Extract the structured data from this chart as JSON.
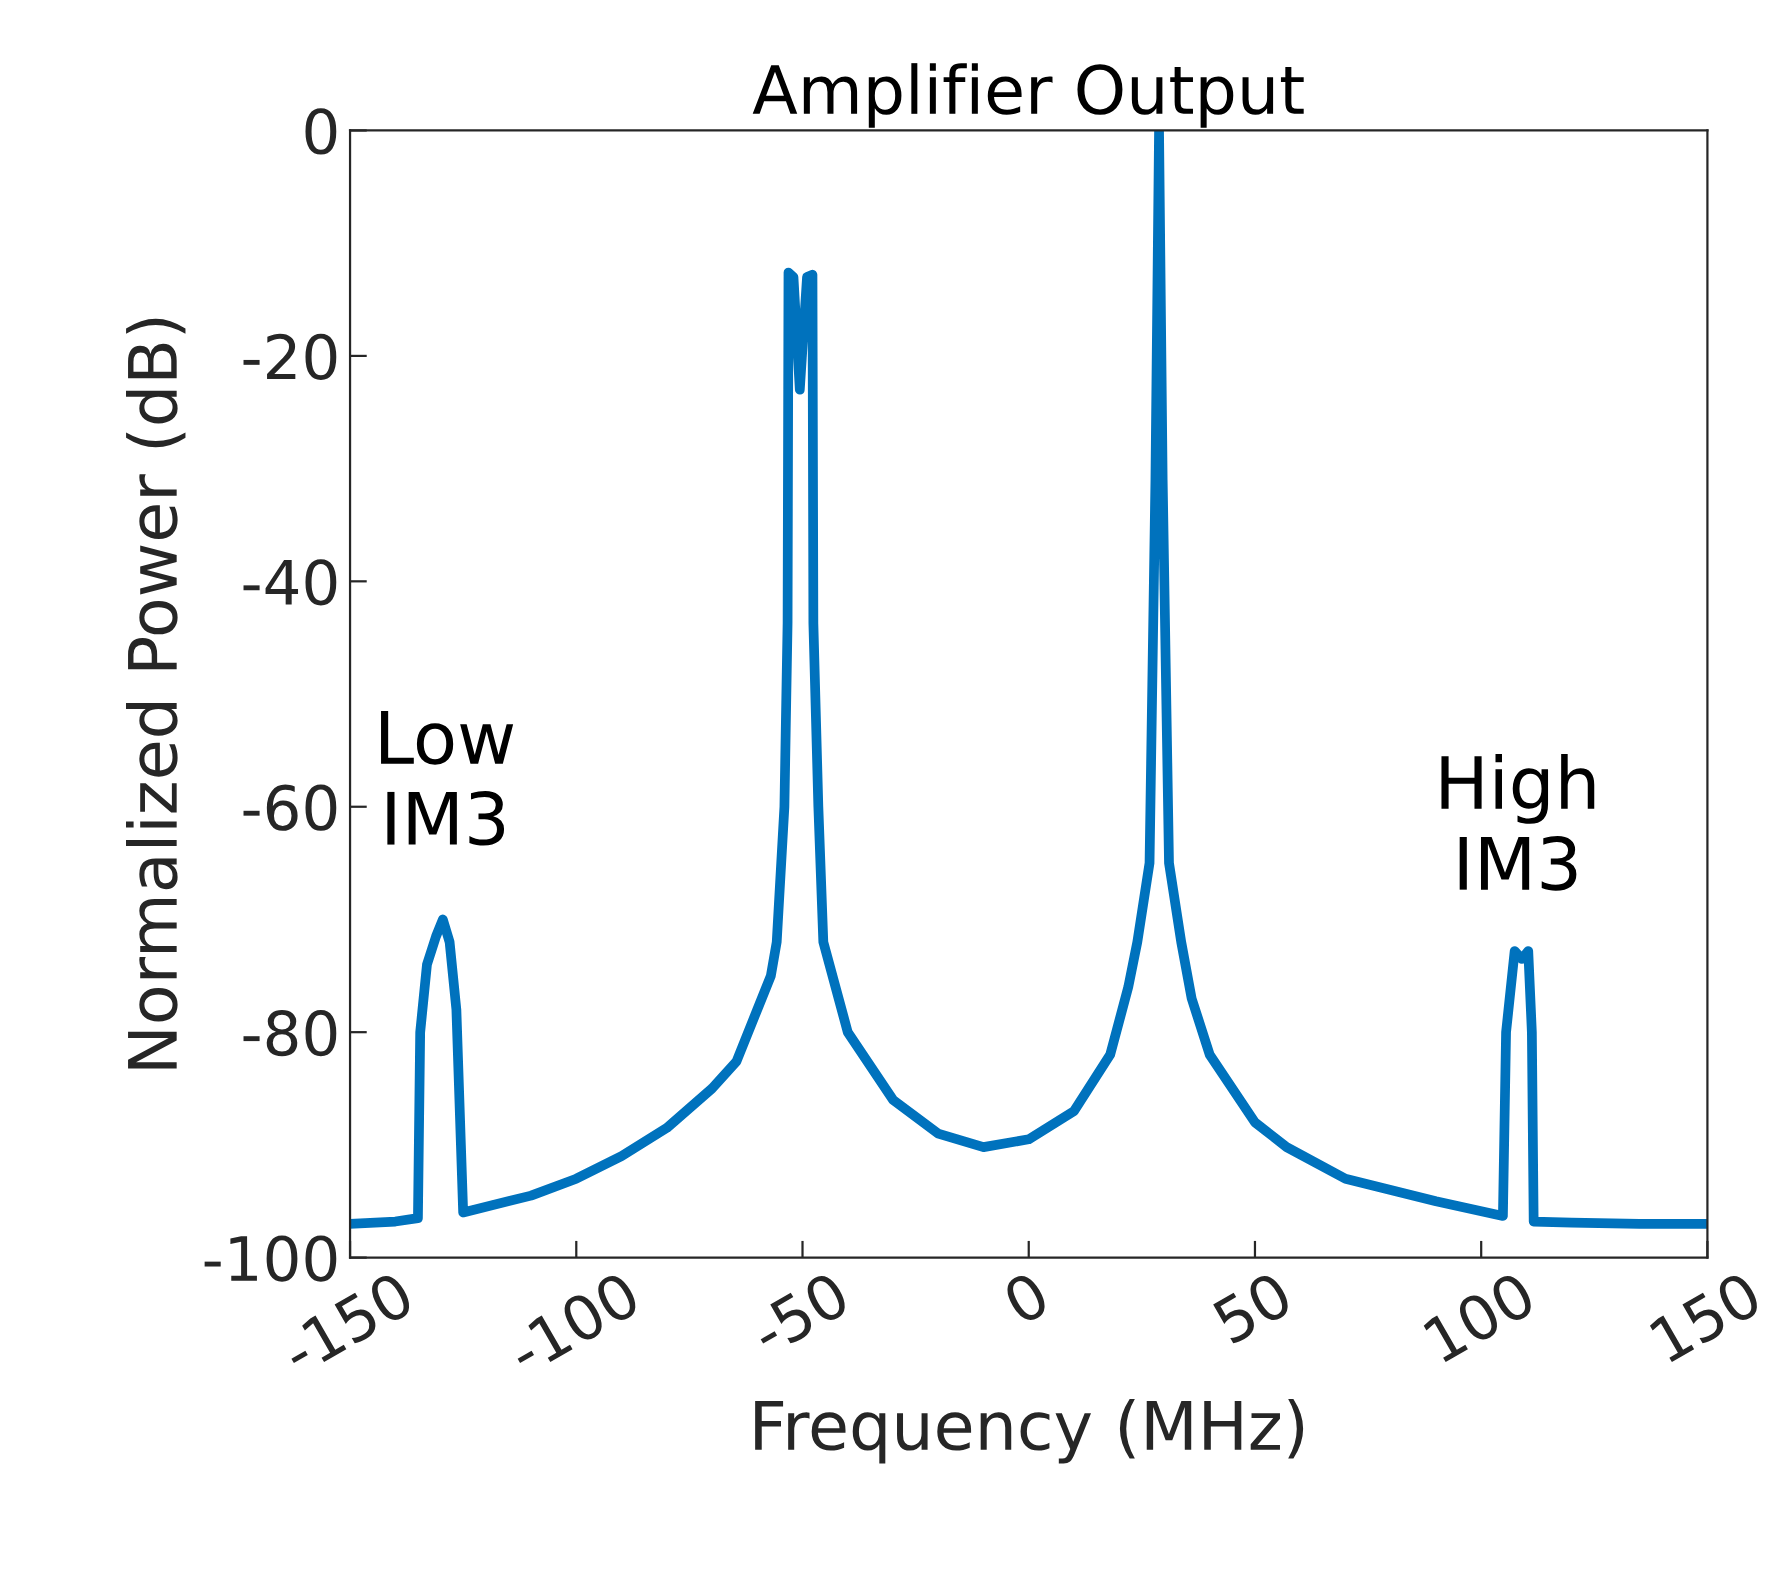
{
  "chart_data": {
    "type": "line",
    "title": "Amplifier Output",
    "xlabel": "Frequency (MHz)",
    "ylabel": "Normalized Power (dB)",
    "xlim": [
      -150,
      150
    ],
    "ylim": [
      -100,
      0
    ],
    "xticks": [
      -150,
      -100,
      -50,
      0,
      50,
      100,
      150
    ],
    "yticks": [
      -100,
      -80,
      -60,
      -40,
      -20,
      0
    ],
    "grid": false,
    "marker": "none",
    "line_style": "solid",
    "series": [
      {
        "color": "#0072bd",
        "x": [
          -150,
          -140,
          -135,
          -134.5,
          -133,
          -131,
          -129.5,
          -128,
          -126.5,
          -125.5,
          -125,
          -110,
          -100,
          -90,
          -80,
          -70,
          -64.6,
          -60,
          -57,
          -55.7,
          -54,
          -53.3,
          -53.1,
          -52,
          -50.6,
          -49,
          -47.8,
          -47.6,
          -46.5,
          -45.4,
          -40,
          -30,
          -20,
          -10,
          0,
          10,
          18,
          22,
          24,
          26.7,
          28,
          28.8,
          29.6,
          31,
          33.7,
          36,
          40,
          50,
          57,
          70,
          90,
          104.8,
          105.5,
          107.4,
          109,
          110.4,
          111.2,
          111.6,
          120,
          135,
          150
        ],
        "values": [
          -97,
          -96.8,
          -96.5,
          -80,
          -74,
          -71.5,
          -70,
          -72,
          -78,
          -90,
          -96,
          -94.5,
          -93,
          -91,
          -88.5,
          -85,
          -82.6,
          -78,
          -75,
          -72,
          -60,
          -43.7,
          -12.6,
          -13,
          -23,
          -13,
          -12.8,
          -43.7,
          -60,
          -72,
          -80,
          -86,
          -89,
          -90.2,
          -89.5,
          -87,
          -82,
          -76,
          -72,
          -65,
          -31,
          0,
          -31,
          -65,
          -72,
          -77,
          -82,
          -88,
          -90.2,
          -93,
          -95,
          -96.3,
          -80,
          -72.8,
          -73.5,
          -72.8,
          -80,
          -96.8,
          -96.9,
          -97,
          -97
        ]
      }
    ],
    "annotations": [
      "Low\nIM3",
      "High\nIM3"
    ]
  }
}
